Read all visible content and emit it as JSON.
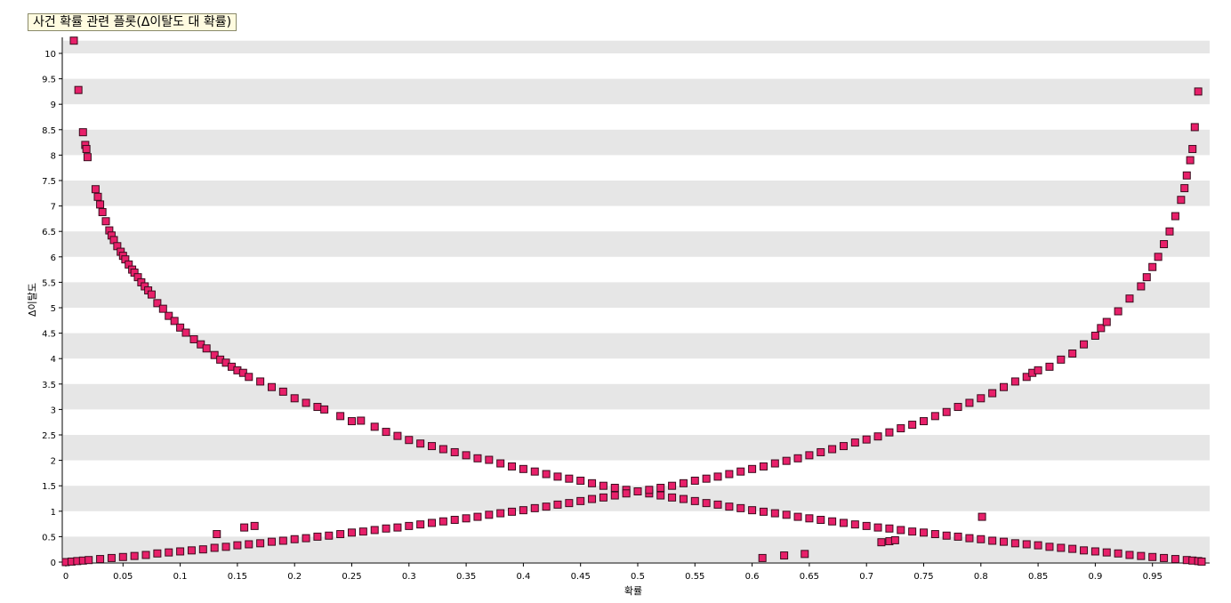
{
  "chart_data": {
    "type": "scatter",
    "title": "사건 확률 관련 플롯(Δ이탈도 대 확률)",
    "xlabel": "확률",
    "ylabel": "Δ이탈도",
    "xlim": [
      0,
      0.995
    ],
    "ylim": [
      0,
      10.25
    ],
    "xticks": [
      "0",
      "0.05",
      "0.1",
      "0.15",
      "0.2",
      "0.25",
      "0.3",
      "0.35",
      "0.4",
      "0.45",
      "0.5",
      "0.55",
      "0.6",
      "0.65",
      "0.7",
      "0.75",
      "0.8",
      "0.85",
      "0.9",
      "0.95"
    ],
    "yticks": [
      "0",
      "0.5",
      "1",
      "1.5",
      "2",
      "2.5",
      "3",
      "3.5",
      "4",
      "4.5",
      "5",
      "5.5",
      "6",
      "6.5",
      "7",
      "7.5",
      "8",
      "8.5",
      "9",
      "9.5",
      "10"
    ],
    "grid": "alternating horizontal bands",
    "marker_color": "#e8206a",
    "marker_edge_color": "#3a0d1e",
    "series": [
      {
        "points": [
          [
            0.007,
            10.25
          ],
          [
            0.011,
            9.28
          ],
          [
            0.015,
            8.45
          ],
          [
            0.017,
            8.2
          ],
          [
            0.018,
            8.12
          ],
          [
            0.019,
            7.96
          ],
          [
            0.026,
            7.33
          ],
          [
            0.028,
            7.18
          ],
          [
            0.03,
            7.03
          ],
          [
            0.032,
            6.88
          ],
          [
            0.035,
            6.7
          ],
          [
            0.038,
            6.52
          ],
          [
            0.04,
            6.42
          ],
          [
            0.042,
            6.33
          ],
          [
            0.045,
            6.21
          ],
          [
            0.048,
            6.1
          ],
          [
            0.05,
            6.02
          ],
          [
            0.052,
            5.95
          ],
          [
            0.055,
            5.85
          ],
          [
            0.058,
            5.75
          ],
          [
            0.06,
            5.69
          ],
          [
            0.063,
            5.6
          ],
          [
            0.066,
            5.5
          ],
          [
            0.069,
            5.42
          ],
          [
            0.072,
            5.34
          ],
          [
            0.075,
            5.26
          ],
          [
            0.08,
            5.09
          ],
          [
            0.085,
            4.98
          ],
          [
            0.09,
            4.84
          ],
          [
            0.095,
            4.74
          ],
          [
            0.1,
            4.61
          ],
          [
            0.105,
            4.51
          ],
          [
            0.112,
            4.38
          ],
          [
            0.118,
            4.28
          ],
          [
            0.123,
            4.2
          ],
          [
            0.13,
            4.07
          ],
          [
            0.135,
            3.98
          ],
          [
            0.14,
            3.92
          ],
          [
            0.145,
            3.84
          ],
          [
            0.15,
            3.77
          ],
          [
            0.155,
            3.72
          ],
          [
            0.16,
            3.64
          ],
          [
            0.17,
            3.55
          ],
          [
            0.18,
            3.44
          ],
          [
            0.19,
            3.35
          ],
          [
            0.2,
            3.22
          ],
          [
            0.21,
            3.13
          ],
          [
            0.22,
            3.05
          ],
          [
            0.226,
            3.0
          ],
          [
            0.24,
            2.87
          ],
          [
            0.25,
            2.77
          ],
          [
            0.258,
            2.78
          ],
          [
            0.27,
            2.66
          ],
          [
            0.28,
            2.56
          ],
          [
            0.29,
            2.48
          ],
          [
            0.3,
            2.4
          ],
          [
            0.31,
            2.33
          ],
          [
            0.32,
            2.28
          ],
          [
            0.33,
            2.22
          ],
          [
            0.34,
            2.16
          ],
          [
            0.35,
            2.1
          ],
          [
            0.36,
            2.04
          ],
          [
            0.37,
            2.01
          ],
          [
            0.38,
            1.94
          ],
          [
            0.39,
            1.88
          ],
          [
            0.4,
            1.83
          ],
          [
            0.41,
            1.78
          ],
          [
            0.42,
            1.73
          ],
          [
            0.43,
            1.68
          ],
          [
            0.44,
            1.64
          ],
          [
            0.45,
            1.6
          ],
          [
            0.46,
            1.55
          ],
          [
            0.47,
            1.5
          ],
          [
            0.48,
            1.46
          ],
          [
            0.49,
            1.42
          ],
          [
            0.5,
            1.39
          ],
          [
            0.51,
            1.35
          ],
          [
            0.52,
            1.31
          ],
          [
            0.53,
            1.27
          ],
          [
            0.54,
            1.24
          ],
          [
            0.55,
            1.2
          ],
          [
            0.56,
            1.16
          ],
          [
            0.57,
            1.13
          ],
          [
            0.58,
            1.09
          ],
          [
            0.59,
            1.06
          ],
          [
            0.6,
            1.02
          ],
          [
            0.61,
            0.99
          ],
          [
            0.62,
            0.96
          ],
          [
            0.63,
            0.93
          ],
          [
            0.64,
            0.89
          ],
          [
            0.65,
            0.86
          ],
          [
            0.66,
            0.83
          ],
          [
            0.67,
            0.8
          ],
          [
            0.68,
            0.77
          ],
          [
            0.69,
            0.74
          ],
          [
            0.7,
            0.71
          ],
          [
            0.71,
            0.68
          ],
          [
            0.72,
            0.66
          ],
          [
            0.73,
            0.63
          ],
          [
            0.74,
            0.6
          ],
          [
            0.75,
            0.58
          ],
          [
            0.76,
            0.55
          ],
          [
            0.77,
            0.52
          ],
          [
            0.78,
            0.5
          ],
          [
            0.79,
            0.47
          ],
          [
            0.8,
            0.45
          ],
          [
            0.81,
            0.42
          ],
          [
            0.82,
            0.4
          ],
          [
            0.83,
            0.37
          ],
          [
            0.84,
            0.35
          ],
          [
            0.85,
            0.33
          ],
          [
            0.86,
            0.3
          ],
          [
            0.87,
            0.28
          ],
          [
            0.88,
            0.26
          ],
          [
            0.89,
            0.23
          ],
          [
            0.9,
            0.21
          ],
          [
            0.91,
            0.19
          ],
          [
            0.92,
            0.17
          ],
          [
            0.93,
            0.14
          ],
          [
            0.94,
            0.12
          ],
          [
            0.95,
            0.1
          ],
          [
            0.96,
            0.08
          ],
          [
            0.97,
            0.06
          ],
          [
            0.98,
            0.04
          ],
          [
            0.985,
            0.03
          ],
          [
            0.99,
            0.02
          ],
          [
            0.993,
            0.01
          ],
          [
            0.0,
            0.0
          ],
          [
            0.005,
            0.01
          ],
          [
            0.01,
            0.02
          ],
          [
            0.015,
            0.03
          ],
          [
            0.02,
            0.04
          ],
          [
            0.03,
            0.06
          ],
          [
            0.04,
            0.08
          ],
          [
            0.05,
            0.1
          ],
          [
            0.06,
            0.12
          ],
          [
            0.07,
            0.14
          ],
          [
            0.08,
            0.17
          ],
          [
            0.09,
            0.19
          ],
          [
            0.1,
            0.21
          ],
          [
            0.11,
            0.23
          ],
          [
            0.12,
            0.25
          ],
          [
            0.13,
            0.28
          ],
          [
            0.14,
            0.3
          ],
          [
            0.15,
            0.33
          ],
          [
            0.16,
            0.35
          ],
          [
            0.17,
            0.37
          ],
          [
            0.18,
            0.4
          ],
          [
            0.19,
            0.42
          ],
          [
            0.2,
            0.45
          ],
          [
            0.21,
            0.47
          ],
          [
            0.22,
            0.5
          ],
          [
            0.23,
            0.52
          ],
          [
            0.24,
            0.55
          ],
          [
            0.25,
            0.58
          ],
          [
            0.26,
            0.6
          ],
          [
            0.27,
            0.63
          ],
          [
            0.28,
            0.66
          ],
          [
            0.29,
            0.68
          ],
          [
            0.3,
            0.71
          ],
          [
            0.31,
            0.74
          ],
          [
            0.32,
            0.77
          ],
          [
            0.33,
            0.8
          ],
          [
            0.34,
            0.83
          ],
          [
            0.35,
            0.86
          ],
          [
            0.36,
            0.89
          ],
          [
            0.37,
            0.93
          ],
          [
            0.38,
            0.96
          ],
          [
            0.39,
            0.99
          ],
          [
            0.4,
            1.02
          ],
          [
            0.41,
            1.06
          ],
          [
            0.42,
            1.09
          ],
          [
            0.43,
            1.13
          ],
          [
            0.44,
            1.16
          ],
          [
            0.45,
            1.2
          ],
          [
            0.46,
            1.24
          ],
          [
            0.47,
            1.27
          ],
          [
            0.48,
            1.31
          ],
          [
            0.49,
            1.35
          ],
          [
            0.5,
            1.39
          ],
          [
            0.51,
            1.42
          ],
          [
            0.52,
            1.46
          ],
          [
            0.53,
            1.5
          ],
          [
            0.54,
            1.55
          ],
          [
            0.55,
            1.6
          ],
          [
            0.56,
            1.64
          ],
          [
            0.57,
            1.68
          ],
          [
            0.58,
            1.73
          ],
          [
            0.59,
            1.78
          ],
          [
            0.6,
            1.83
          ],
          [
            0.61,
            1.88
          ],
          [
            0.62,
            1.94
          ],
          [
            0.63,
            1.99
          ],
          [
            0.64,
            2.04
          ],
          [
            0.65,
            2.1
          ],
          [
            0.66,
            2.16
          ],
          [
            0.67,
            2.22
          ],
          [
            0.68,
            2.28
          ],
          [
            0.69,
            2.35
          ],
          [
            0.7,
            2.41
          ],
          [
            0.71,
            2.47
          ],
          [
            0.72,
            2.55
          ],
          [
            0.73,
            2.63
          ],
          [
            0.74,
            2.7
          ],
          [
            0.75,
            2.77
          ],
          [
            0.76,
            2.87
          ],
          [
            0.77,
            2.95
          ],
          [
            0.78,
            3.05
          ],
          [
            0.79,
            3.13
          ],
          [
            0.8,
            3.22
          ],
          [
            0.81,
            3.32
          ],
          [
            0.82,
            3.44
          ],
          [
            0.83,
            3.55
          ],
          [
            0.84,
            3.64
          ],
          [
            0.845,
            3.72
          ],
          [
            0.85,
            3.77
          ],
          [
            0.86,
            3.84
          ],
          [
            0.87,
            3.98
          ],
          [
            0.88,
            4.1
          ],
          [
            0.89,
            4.28
          ],
          [
            0.9,
            4.45
          ],
          [
            0.905,
            4.6
          ],
          [
            0.91,
            4.72
          ],
          [
            0.92,
            4.93
          ],
          [
            0.93,
            5.18
          ],
          [
            0.94,
            5.42
          ],
          [
            0.945,
            5.6
          ],
          [
            0.95,
            5.8
          ],
          [
            0.955,
            6.0
          ],
          [
            0.96,
            6.25
          ],
          [
            0.965,
            6.5
          ],
          [
            0.97,
            6.8
          ],
          [
            0.975,
            7.12
          ],
          [
            0.978,
            7.35
          ],
          [
            0.98,
            7.6
          ],
          [
            0.983,
            7.9
          ],
          [
            0.985,
            8.12
          ],
          [
            0.987,
            8.55
          ],
          [
            0.99,
            9.25
          ],
          [
            0.132,
            0.55
          ],
          [
            0.156,
            0.68
          ],
          [
            0.165,
            0.71
          ],
          [
            0.609,
            0.08
          ],
          [
            0.628,
            0.13
          ],
          [
            0.646,
            0.16
          ],
          [
            0.713,
            0.39
          ],
          [
            0.72,
            0.41
          ],
          [
            0.725,
            0.43
          ],
          [
            0.801,
            0.89
          ]
        ]
      }
    ]
  }
}
